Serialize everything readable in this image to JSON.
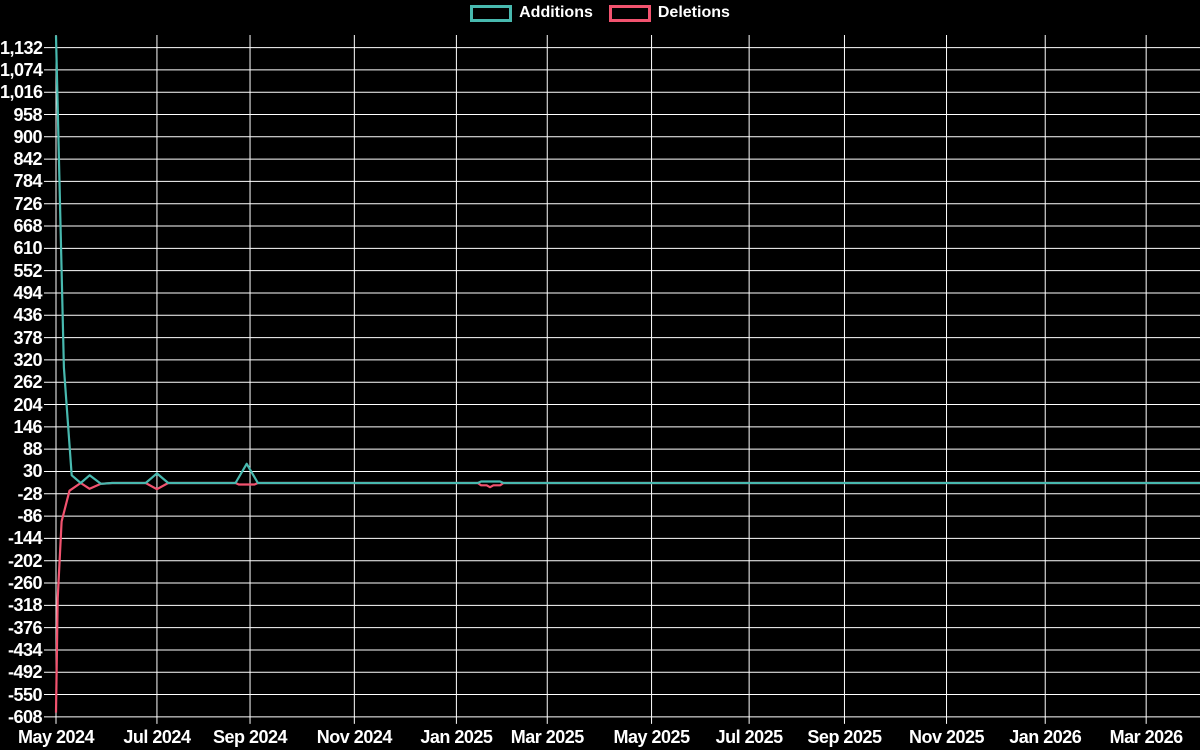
{
  "app": {
    "background": "#000000",
    "grid_color": "#ffffff",
    "text_color": "#ffffff"
  },
  "legend": {
    "position": "top-center",
    "items": [
      {
        "label": "Additions",
        "color": "#48b9af"
      },
      {
        "label": "Deletions",
        "color": "#f2536f"
      }
    ]
  },
  "chart_data": {
    "type": "line",
    "title": "",
    "xlabel": "",
    "ylabel": "",
    "grid": true,
    "legend_position": "top-center",
    "x_axis": {
      "unit": "weeks since 2024-05-01",
      "domain_weeks": [
        0,
        102
      ],
      "tick_labels": [
        "May 2024",
        "Jul 2024",
        "Sep 2024",
        "Nov 2024",
        "Jan 2025",
        "Mar 2025",
        "May 2025",
        "Jul 2025",
        "Sep 2025",
        "Nov 2025",
        "Jan 2026",
        "Mar 2026"
      ],
      "tick_weeks": [
        0,
        9.0,
        17.3,
        26.6,
        35.7,
        43.8,
        53.1,
        61.8,
        70.3,
        79.4,
        88.2,
        97.2
      ]
    },
    "y_axis": {
      "tick_values": [
        1132,
        1074,
        1016,
        958,
        900,
        842,
        784,
        726,
        668,
        610,
        552,
        494,
        436,
        378,
        320,
        262,
        204,
        146,
        88,
        30,
        -28,
        -86,
        -144,
        -202,
        -260,
        -318,
        -376,
        -434,
        -492,
        -550,
        -608
      ],
      "tick_step": 58,
      "ylim": [
        -614,
        1167
      ]
    },
    "series": [
      {
        "name": "Additions",
        "color": "#48b9af",
        "points": [
          [
            0,
            1163
          ],
          [
            0.7,
            300
          ],
          [
            1.4,
            20
          ],
          [
            2.2,
            0
          ],
          [
            3,
            20
          ],
          [
            4,
            -2
          ],
          [
            5,
            0
          ],
          [
            8,
            0
          ],
          [
            9,
            25
          ],
          [
            10,
            0
          ],
          [
            16,
            0
          ],
          [
            17,
            50
          ],
          [
            18,
            0
          ],
          [
            37.6,
            0
          ],
          [
            37.9,
            4
          ],
          [
            39.6,
            4
          ],
          [
            39.9,
            0
          ],
          [
            102,
            0
          ]
        ]
      },
      {
        "name": "Deletions",
        "color": "#f2536f",
        "points": [
          [
            0,
            -597
          ],
          [
            0.15,
            -300
          ],
          [
            0.5,
            -100
          ],
          [
            1.2,
            -20
          ],
          [
            2.2,
            0
          ],
          [
            3,
            -15
          ],
          [
            4,
            -2
          ],
          [
            5,
            0
          ],
          [
            8,
            0
          ],
          [
            9,
            -16
          ],
          [
            10,
            0
          ],
          [
            16,
            0
          ],
          [
            16.3,
            -4
          ],
          [
            17.7,
            -4
          ],
          [
            18,
            0
          ],
          [
            37.6,
            0
          ],
          [
            37.9,
            -6
          ],
          [
            38.4,
            -6
          ],
          [
            38.7,
            -11
          ],
          [
            39.0,
            -6
          ],
          [
            39.6,
            -6
          ],
          [
            39.9,
            0
          ],
          [
            102,
            0
          ]
        ]
      }
    ]
  }
}
